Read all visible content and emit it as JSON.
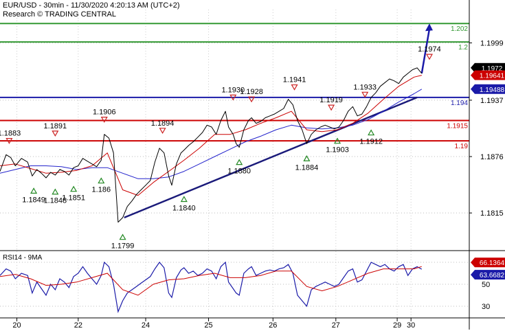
{
  "header": {
    "line1": "EUR/USD - 30min - 11/30/2020 4:20:13 AM (UTC+2)",
    "line2": "Research © TRADING CENTRAL"
  },
  "colors": {
    "price": "#000000",
    "ma_red": "#cc0000",
    "ma_blue": "#2222cc",
    "resistance": "#cc0000",
    "target": "#339933",
    "pivot": "#1a1aa8",
    "trend": "#1a1a7a",
    "rsi_line": "#1a1aa8",
    "rsi_ma": "#cc0000",
    "up_marker": "#228822",
    "down_marker": "#cc2222"
  },
  "chart_data": [
    {
      "type": "line",
      "panel": "price",
      "ylim": [
        1.1775,
        1.2035
      ],
      "x_ticks": [
        "20",
        "22",
        "24",
        "25",
        "26",
        "27",
        "29",
        "30"
      ],
      "y_ticks": [
        "1.1999",
        "1.1937",
        "1.1876",
        "1.1815"
      ],
      "levels": [
        {
          "label": "1.202",
          "value": 1.202,
          "kind": "target"
        },
        {
          "label": "1.2",
          "value": 1.2,
          "kind": "target"
        },
        {
          "label": "1.194",
          "value": 1.194,
          "kind": "pivot"
        },
        {
          "label": "1.1915",
          "value": 1.1915,
          "kind": "resistance"
        },
        {
          "label": "1.19",
          "value": 1.1893,
          "kind": "resistance"
        }
      ],
      "price_tags": [
        {
          "label": "1.1972",
          "value": 1.1972,
          "bg": "#000000"
        },
        {
          "label": "1.19641",
          "value": 1.1964,
          "bg": "#cc0000"
        },
        {
          "label": "1.19488",
          "value": 1.1949,
          "bg": "#1a1aa8"
        }
      ],
      "highs": [
        {
          "label": "1.1883",
          "x": 0.3,
          "value": 1.1883
        },
        {
          "label": "1.1891",
          "x": 1.8,
          "value": 1.1891
        },
        {
          "label": "1.1906",
          "x": 3.4,
          "value": 1.1906
        },
        {
          "label": "1.1894",
          "x": 5.3,
          "value": 1.1894
        },
        {
          "label": "1.1930",
          "x": 7.6,
          "value": 1.193
        },
        {
          "label": "1.1928",
          "x": 8.2,
          "value": 1.1928
        },
        {
          "label": "1.1941",
          "x": 9.6,
          "value": 1.1941
        },
        {
          "label": "1.1919",
          "x": 10.8,
          "value": 1.1919
        },
        {
          "label": "1.1933",
          "x": 11.9,
          "value": 1.1933
        },
        {
          "label": "1.1974",
          "x": 14.0,
          "value": 1.1974
        }
      ],
      "lows": [
        {
          "label": "1.1849",
          "x": 1.1,
          "value": 1.1849
        },
        {
          "label": "1.1848",
          "x": 1.8,
          "value": 1.1848
        },
        {
          "label": "1.1851",
          "x": 2.4,
          "value": 1.1851
        },
        {
          "label": "1.186",
          "x": 3.3,
          "value": 1.186
        },
        {
          "label": "1.1799",
          "x": 4.0,
          "value": 1.1799
        },
        {
          "label": "1.1840",
          "x": 6.0,
          "value": 1.184
        },
        {
          "label": "1.1880",
          "x": 7.8,
          "value": 1.188
        },
        {
          "label": "1.1884",
          "x": 10.0,
          "value": 1.1884
        },
        {
          "label": "1.1903",
          "x": 11.0,
          "value": 1.1903
        },
        {
          "label": "1.1912",
          "x": 12.1,
          "value": 1.1912
        }
      ],
      "trendline": {
        "x": [
          4.05,
          13.6
        ],
        "y": [
          1.181,
          1.194
        ]
      },
      "arrow": {
        "x": [
          13.75,
          14.0
        ],
        "y": [
          1.1966,
          1.202
        ]
      },
      "series": [
        {
          "name": "",
          "x": [
            0.0,
            0.2,
            0.35,
            0.5,
            0.7,
            0.9,
            1.05,
            1.2,
            1.35,
            1.5,
            1.65,
            1.8,
            1.95,
            2.1,
            2.25,
            2.4,
            2.55,
            2.7,
            2.85,
            3.0,
            3.15,
            3.3,
            3.4,
            3.55,
            3.7,
            3.85,
            4.0,
            4.15,
            4.3,
            4.45,
            4.6,
            4.75,
            4.9,
            5.05,
            5.2,
            5.35,
            5.5,
            5.6,
            5.75,
            5.9,
            6.0,
            6.15,
            6.3,
            6.45,
            6.6,
            6.75,
            6.9,
            7.05,
            7.2,
            7.35,
            7.45,
            7.6,
            7.7,
            7.8,
            7.95,
            8.1,
            8.2,
            8.35,
            8.5,
            8.65,
            8.8,
            8.95,
            9.1,
            9.25,
            9.4,
            9.55,
            9.7,
            9.85,
            10.0,
            10.15,
            10.3,
            10.45,
            10.6,
            10.75,
            10.9,
            11.05,
            11.2,
            11.35,
            11.5,
            11.65,
            11.8,
            11.95,
            12.1,
            12.25,
            12.4,
            12.55,
            12.7,
            12.85,
            13.0,
            13.15,
            13.3,
            13.45,
            13.6,
            13.75
          ],
          "y": [
            1.186,
            1.1878,
            1.1875,
            1.1866,
            1.1874,
            1.187,
            1.1855,
            1.1862,
            1.1858,
            1.1853,
            1.1859,
            1.1856,
            1.1862,
            1.186,
            1.1856,
            1.1864,
            1.1866,
            1.1874,
            1.1871,
            1.1868,
            1.1865,
            1.1872,
            1.19,
            1.1896,
            1.188,
            1.1805,
            1.181,
            1.1822,
            1.1828,
            1.1835,
            1.184,
            1.1845,
            1.185,
            1.187,
            1.1885,
            1.188,
            1.1855,
            1.1845,
            1.1868,
            1.188,
            1.1883,
            1.1888,
            1.1892,
            1.1897,
            1.1902,
            1.191,
            1.1908,
            1.19,
            1.1915,
            1.1925,
            1.1908,
            1.19,
            1.189,
            1.1886,
            1.1905,
            1.1915,
            1.1918,
            1.1912,
            1.1914,
            1.1918,
            1.192,
            1.1922,
            1.1925,
            1.1928,
            1.1938,
            1.1932,
            1.1915,
            1.1905,
            1.189,
            1.19,
            1.1905,
            1.1908,
            1.191,
            1.1908,
            1.1906,
            1.1908,
            1.1915,
            1.1925,
            1.193,
            1.192,
            1.1922,
            1.193,
            1.194,
            1.1945,
            1.1952,
            1.1956,
            1.196,
            1.1958,
            1.1955,
            1.1962,
            1.1966,
            1.197,
            1.1972,
            1.1966
          ]
        },
        {
          "name": "",
          "x": [
            0.0,
            0.5,
            1.0,
            1.5,
            2.0,
            2.5,
            3.0,
            3.5,
            4.0,
            4.5,
            5.0,
            5.5,
            6.0,
            6.5,
            7.0,
            7.5,
            8.0,
            8.5,
            9.0,
            9.5,
            10.0,
            10.5,
            11.0,
            11.5,
            12.0,
            12.5,
            13.0,
            13.5,
            13.75
          ],
          "y": [
            1.1866,
            1.1868,
            1.1863,
            1.1858,
            1.1859,
            1.1861,
            1.1866,
            1.188,
            1.184,
            1.1834,
            1.1848,
            1.186,
            1.1872,
            1.1885,
            1.19,
            1.19,
            1.1905,
            1.1912,
            1.1918,
            1.1925,
            1.1905,
            1.1903,
            1.1905,
            1.1912,
            1.1923,
            1.1938,
            1.1952,
            1.1962,
            1.1964
          ]
        },
        {
          "name": "",
          "x": [
            0.0,
            0.5,
            1.0,
            1.5,
            2.0,
            2.5,
            3.0,
            3.5,
            4.0,
            4.5,
            5.0,
            5.5,
            6.0,
            6.5,
            7.0,
            7.5,
            8.0,
            8.5,
            9.0,
            9.5,
            10.0,
            10.5,
            11.0,
            11.5,
            12.0,
            12.5,
            13.0,
            13.5,
            13.75
          ],
          "y": [
            1.1858,
            1.1862,
            1.1866,
            1.1866,
            1.1865,
            1.1862,
            1.1864,
            1.1864,
            1.1858,
            1.1852,
            1.1852,
            1.1854,
            1.186,
            1.1868,
            1.1876,
            1.1884,
            1.1892,
            1.1898,
            1.1905,
            1.191,
            1.1907,
            1.1906,
            1.1907,
            1.191,
            1.1916,
            1.1925,
            1.1935,
            1.1944,
            1.1949
          ]
        }
      ]
    },
    {
      "type": "line",
      "panel": "rsi",
      "title": "RSI14 - 9MA",
      "ylim": [
        20,
        80
      ],
      "y_ticks": [
        "50",
        "30"
      ],
      "tags": [
        {
          "label": "66.1364",
          "value": 66.1,
          "bg": "#cc0000"
        },
        {
          "label": "63.6682",
          "value": 63.7,
          "bg": "#1a1aa8"
        }
      ],
      "series": [
        {
          "name": "RSI14",
          "x": [
            0.0,
            0.2,
            0.35,
            0.5,
            0.7,
            0.9,
            1.05,
            1.2,
            1.35,
            1.5,
            1.65,
            1.8,
            1.95,
            2.1,
            2.25,
            2.4,
            2.55,
            2.7,
            2.85,
            3.0,
            3.15,
            3.3,
            3.4,
            3.55,
            3.7,
            3.85,
            4.0,
            4.15,
            4.3,
            4.45,
            4.6,
            4.75,
            4.9,
            5.05,
            5.2,
            5.35,
            5.5,
            5.6,
            5.75,
            5.9,
            6.0,
            6.15,
            6.3,
            6.45,
            6.6,
            6.75,
            6.9,
            7.05,
            7.2,
            7.35,
            7.45,
            7.6,
            7.7,
            7.8,
            7.95,
            8.1,
            8.2,
            8.35,
            8.5,
            8.65,
            8.8,
            8.95,
            9.1,
            9.25,
            9.4,
            9.55,
            9.7,
            9.85,
            10.0,
            10.15,
            10.3,
            10.45,
            10.6,
            10.75,
            10.9,
            11.05,
            11.2,
            11.35,
            11.5,
            11.65,
            11.8,
            11.95,
            12.1,
            12.25,
            12.4,
            12.55,
            12.7,
            12.85,
            13.0,
            13.15,
            13.3,
            13.45,
            13.6,
            13.75
          ],
          "y": [
            58,
            64,
            62,
            55,
            60,
            58,
            42,
            52,
            46,
            40,
            50,
            45,
            55,
            52,
            47,
            57,
            60,
            66,
            60,
            55,
            50,
            58,
            70,
            66,
            50,
            25,
            35,
            42,
            45,
            48,
            51,
            54,
            57,
            64,
            70,
            65,
            42,
            38,
            56,
            63,
            65,
            60,
            62,
            58,
            60,
            64,
            62,
            55,
            66,
            70,
            52,
            46,
            42,
            40,
            60,
            64,
            66,
            58,
            60,
            62,
            63,
            62,
            64,
            65,
            68,
            60,
            40,
            35,
            30,
            45,
            48,
            50,
            52,
            50,
            48,
            50,
            56,
            62,
            64,
            52,
            54,
            62,
            70,
            68,
            66,
            68,
            64,
            62,
            66,
            68,
            58,
            64,
            66,
            63.7
          ]
        },
        {
          "name": "9MA",
          "x": [
            0.0,
            0.5,
            1.0,
            1.5,
            2.0,
            2.5,
            3.0,
            3.5,
            4.0,
            4.5,
            5.0,
            5.5,
            6.0,
            6.5,
            7.0,
            7.5,
            8.0,
            8.5,
            9.0,
            9.5,
            10.0,
            10.5,
            11.0,
            11.5,
            12.0,
            12.5,
            13.0,
            13.5,
            13.75
          ],
          "y": [
            57,
            59,
            55,
            49,
            50,
            52,
            56,
            60,
            45,
            40,
            50,
            54,
            55,
            58,
            60,
            56,
            56,
            58,
            62,
            62,
            48,
            44,
            48,
            54,
            60,
            64,
            64,
            64,
            66.1
          ]
        }
      ]
    }
  ]
}
